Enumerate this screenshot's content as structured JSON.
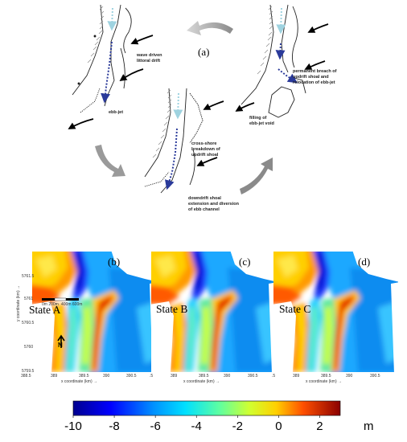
{
  "schematic": {
    "panel_label": "(a)",
    "labels": {
      "wave_drift": [
        "wave driven",
        "littoral drift"
      ],
      "ebb_jet": "ebb-jet",
      "permanent_breach": [
        "permanent breach of",
        "updrift shoal and",
        "relocation of ebb-jet"
      ],
      "filling": [
        "filling of",
        "ebb-jet void"
      ],
      "cross_shore": [
        "cross-shore",
        "breakdown of",
        "updrift shoal"
      ],
      "downdrift": [
        "downdrift shoal",
        "extension and diversion",
        "of ebb channel"
      ]
    }
  },
  "maps": [
    {
      "panel_label": "(b)",
      "state_label": "State A"
    },
    {
      "panel_label": "(c)",
      "state_label": "State B"
    },
    {
      "panel_label": "(d)",
      "state_label": "State C"
    }
  ],
  "axes": {
    "ylabel": "y coordinate (km) →",
    "xlabel": "x coordinate (km) →",
    "yticks": [
      "5761.5",
      "5761",
      "5760.5",
      "5760",
      "5759.5"
    ],
    "xticks_first": [
      "388.5",
      "389",
      "389.5",
      "390",
      "390.5"
    ],
    "xticks_other": [
      "389",
      "389.5",
      "390",
      "390.5"
    ],
    "xtick_end": ".5"
  },
  "scalebar": {
    "labels": [
      "0m 200m",
      "400m 600m"
    ]
  },
  "north": {
    "label": "N"
  },
  "colorbar": {
    "ticks": [
      "-10",
      "-8",
      "-6",
      "-4",
      "-2",
      "0",
      "2"
    ],
    "unit": "m",
    "range": [
      -10,
      3
    ]
  }
}
